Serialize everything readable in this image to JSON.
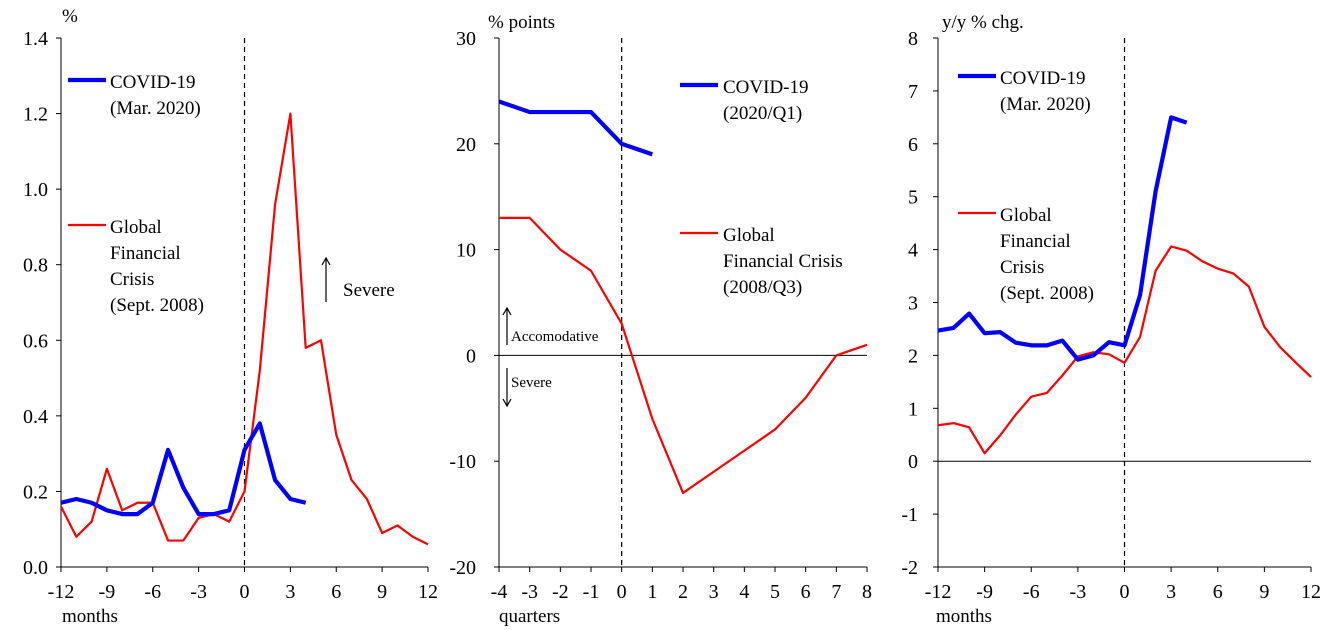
{
  "chart_data": [
    {
      "type": "line",
      "ylabel": "%",
      "xlabel": "months",
      "ylim": [
        0,
        1.4
      ],
      "yticks": [
        0,
        0.2,
        0.4,
        0.6,
        0.8,
        1.0,
        1.2,
        1.4
      ],
      "ytick_labels": [
        "0.0",
        "0.2",
        "0.4",
        "0.6",
        "0.8",
        "1.0",
        "1.2",
        "1.4"
      ],
      "xlim": [
        -12,
        12
      ],
      "xticks": [
        -12,
        -9,
        -6,
        -3,
        0,
        3,
        6,
        9,
        12
      ],
      "xtick_labels": [
        "-12",
        "-9",
        "-6",
        "-3",
        "0",
        "3",
        "6",
        "9",
        "12"
      ],
      "vline_x": 0,
      "zero_line": false,
      "series": [
        {
          "name_lines": [
            "COVID-19",
            "(Mar. 2020)"
          ],
          "color": "#0000ff",
          "x": [
            -12,
            -11,
            -10,
            -9,
            -8,
            -7,
            -6,
            -5,
            -4,
            -3,
            -2,
            -1,
            0,
            1,
            2,
            3,
            4
          ],
          "y": [
            0.17,
            0.18,
            0.17,
            0.15,
            0.14,
            0.14,
            0.17,
            0.31,
            0.21,
            0.14,
            0.14,
            0.15,
            0.31,
            0.38,
            0.23,
            0.18,
            0.17
          ]
        },
        {
          "name_lines": [
            "Global",
            "Financial",
            "Crisis",
            "(Sept. 2008)"
          ],
          "color": "#ff0000",
          "x": [
            -12,
            -11,
            -10,
            -9,
            -8,
            -7,
            -6,
            -5,
            -4,
            -3,
            -2,
            -1,
            0,
            1,
            2,
            3,
            4,
            5,
            6,
            7,
            8,
            9,
            10,
            11,
            12
          ],
          "y": [
            0.16,
            0.08,
            0.12,
            0.26,
            0.15,
            0.17,
            0.17,
            0.07,
            0.07,
            0.13,
            0.14,
            0.12,
            0.2,
            0.52,
            0.96,
            1.2,
            0.58,
            0.6,
            0.35,
            0.23,
            0.18,
            0.09,
            0.11,
            0.08,
            0.06
          ]
        }
      ],
      "annotations": [
        {
          "text": "Severe",
          "arrow": "up"
        }
      ]
    },
    {
      "type": "line",
      "ylabel": "% points",
      "xlabel": "quarters",
      "ylim": [
        -20,
        30
      ],
      "yticks": [
        -20,
        -10,
        0,
        10,
        20,
        30
      ],
      "ytick_labels": [
        "-20",
        "-10",
        "0",
        "10",
        "20",
        "30"
      ],
      "xlim": [
        -4,
        8
      ],
      "xticks": [
        -4,
        -3,
        -2,
        -1,
        0,
        1,
        2,
        3,
        4,
        5,
        6,
        7,
        8
      ],
      "xtick_labels": [
        "-4",
        "-3",
        "-2",
        "-1",
        "0",
        "1",
        "2",
        "3",
        "4",
        "5",
        "6",
        "7",
        "8"
      ],
      "vline_x": 0,
      "zero_line": true,
      "series": [
        {
          "name_lines": [
            "COVID-19",
            "(2020/Q1)"
          ],
          "color": "#0000ff",
          "x": [
            -4,
            -3,
            -2,
            -1,
            0,
            1
          ],
          "y": [
            24,
            23,
            23,
            23,
            20,
            19
          ]
        },
        {
          "name_lines": [
            "Global",
            "Financial Crisis",
            "(2008/Q3)"
          ],
          "color": "#ff0000",
          "x": [
            -4,
            -3,
            -2,
            -1,
            0,
            1,
            2,
            3,
            4,
            5,
            6,
            7,
            8
          ],
          "y": [
            13,
            13,
            10,
            8,
            3,
            -6,
            -13,
            -11,
            -9,
            -7,
            -4,
            0,
            1
          ]
        }
      ],
      "annotations": [
        {
          "text": "Accomodative",
          "arrow": "up"
        },
        {
          "text": "Severe",
          "arrow": "down"
        }
      ]
    },
    {
      "type": "line",
      "ylabel": "y/y % chg.",
      "xlabel": "months",
      "ylim": [
        -2,
        8
      ],
      "yticks": [
        -2,
        -1,
        0,
        1,
        2,
        3,
        4,
        5,
        6,
        7,
        8
      ],
      "ytick_labels": [
        "-2",
        "-1",
        "0",
        "1",
        "2",
        "3",
        "4",
        "5",
        "6",
        "7",
        "8"
      ],
      "xlim": [
        -12,
        12
      ],
      "xticks": [
        -12,
        -9,
        -6,
        -3,
        0,
        3,
        6,
        9,
        12
      ],
      "xtick_labels": [
        "-12",
        "-9",
        "-6",
        "-3",
        "0",
        "3",
        "6",
        "9",
        "12"
      ],
      "vline_x": 0,
      "zero_line": true,
      "series": [
        {
          "name_lines": [
            "COVID-19",
            "(Mar. 2020)"
          ],
          "color": "#0000ff",
          "x": [
            -12,
            -11,
            -10,
            -9,
            -8,
            -7,
            -6,
            -5,
            -4,
            -3,
            -2,
            -1,
            0,
            1,
            2,
            3,
            4
          ],
          "y": [
            2.47,
            2.52,
            2.79,
            2.42,
            2.44,
            2.24,
            2.19,
            2.19,
            2.28,
            1.92,
            2.0,
            2.25,
            2.19,
            3.14,
            5.1,
            6.5,
            6.4
          ]
        },
        {
          "name_lines": [
            "Global",
            "Financial",
            "Crisis",
            "(Sept. 2008)"
          ],
          "color": "#ff0000",
          "x": [
            -12,
            -11,
            -10,
            -9,
            -8,
            -7,
            -6,
            -5,
            -4,
            -3,
            -2,
            -1,
            0,
            1,
            2,
            3,
            4,
            5,
            6,
            7,
            8,
            9,
            10,
            11,
            12
          ],
          "y": [
            0.68,
            0.72,
            0.64,
            0.15,
            0.49,
            0.88,
            1.22,
            1.29,
            1.62,
            1.98,
            2.06,
            2.02,
            1.86,
            2.35,
            3.6,
            4.06,
            3.98,
            3.78,
            3.64,
            3.55,
            3.3,
            2.54,
            2.16,
            1.87,
            1.59
          ]
        }
      ],
      "annotations": []
    }
  ]
}
